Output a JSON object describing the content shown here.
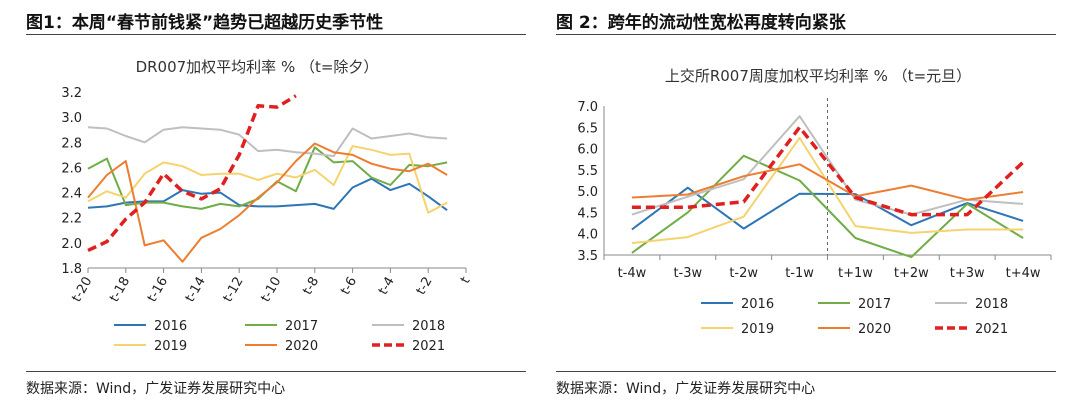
{
  "panels": [
    {
      "figure_title": "图1：本周“春节前钱紧”趋势已超越历史季节性",
      "source_note": "数据来源：Wind，广发证券发展研究中心"
    },
    {
      "figure_title": "图 2：跨年的流动性宽松再度转向紧张",
      "source_note": "数据来源：Wind，广发证券发展研究中心"
    }
  ],
  "chart_data": [
    {
      "type": "line",
      "title": "DR007加权平均利率 %  （t=除夕）",
      "xlabel": "",
      "ylabel": "",
      "categories": [
        "t-20",
        "t-19",
        "t-18",
        "t-17",
        "t-16",
        "t-15",
        "t-14",
        "t-13",
        "t-12",
        "t-11",
        "t-10",
        "t-9",
        "t-8",
        "t-7",
        "t-6",
        "t-5",
        "t-4",
        "t-3",
        "t-2",
        "t-1",
        "t"
      ],
      "tick_labels": [
        "t-20",
        "t-18",
        "t-16",
        "t-14",
        "t-12",
        "t-10",
        "t-8",
        "t-6",
        "t-4",
        "t-2",
        "t"
      ],
      "ylim": [
        1.8,
        3.2
      ],
      "yticks": [
        "1.8",
        "2.0",
        "2.2",
        "2.4",
        "2.6",
        "2.8",
        "3.0",
        "3.2"
      ],
      "series": [
        {
          "name": "2016",
          "color": "#2e75b6",
          "dash": false,
          "values": [
            2.28,
            2.29,
            2.32,
            2.33,
            2.33,
            2.42,
            2.39,
            2.4,
            2.3,
            2.29,
            2.29,
            2.3,
            2.31,
            2.27,
            2.44,
            2.51,
            2.42,
            2.47,
            2.37,
            2.26,
            null
          ]
        },
        {
          "name": "2017",
          "color": "#70ad47",
          "dash": false,
          "values": [
            2.59,
            2.67,
            2.3,
            2.32,
            2.32,
            2.29,
            2.27,
            2.31,
            2.29,
            2.35,
            2.49,
            2.41,
            2.76,
            2.64,
            2.65,
            2.52,
            2.46,
            2.62,
            2.61,
            2.64,
            null
          ]
        },
        {
          "name": "2018",
          "color": "#bfbfbf",
          "dash": false,
          "values": [
            2.92,
            2.91,
            2.85,
            2.8,
            2.9,
            2.92,
            2.91,
            2.9,
            2.86,
            2.73,
            2.74,
            2.72,
            2.71,
            2.69,
            2.91,
            2.83,
            2.85,
            2.87,
            2.84,
            2.83,
            null
          ]
        },
        {
          "name": "2019",
          "color": "#f5d36e",
          "dash": false,
          "values": [
            2.33,
            2.41,
            2.36,
            2.55,
            2.64,
            2.61,
            2.54,
            2.55,
            2.55,
            2.5,
            2.55,
            2.52,
            2.58,
            2.46,
            2.77,
            2.74,
            2.7,
            2.71,
            2.24,
            2.32,
            null
          ]
        },
        {
          "name": "2020",
          "color": "#ed7d31",
          "dash": false,
          "values": [
            2.36,
            2.54,
            2.65,
            1.98,
            2.02,
            1.85,
            2.04,
            2.11,
            2.22,
            2.36,
            2.48,
            2.65,
            2.79,
            2.72,
            2.7,
            2.63,
            2.59,
            2.57,
            2.63,
            2.54,
            null
          ]
        },
        {
          "name": "2021",
          "color": "#e02020",
          "dash": true,
          "values": [
            1.94,
            2.01,
            2.19,
            2.32,
            2.55,
            2.41,
            2.35,
            2.43,
            2.7,
            3.09,
            3.08,
            3.17,
            null,
            null,
            null,
            null,
            null,
            null,
            null,
            null,
            null
          ]
        }
      ]
    },
    {
      "type": "line",
      "title": "上交所R007周度加权平均利率 %  （t=元旦）",
      "xlabel": "",
      "ylabel": "",
      "categories": [
        "t-4w",
        "t-3w",
        "t-2w",
        "t-1w",
        "t+1w",
        "t+2w",
        "t+3w",
        "t+4w"
      ],
      "ylim": [
        3.5,
        7.0
      ],
      "yticks": [
        "3.5",
        "4.0",
        "4.5",
        "5.0",
        "5.5",
        "6.0",
        "6.5",
        "7.0"
      ],
      "divider_after": "t-1w",
      "series": [
        {
          "name": "2016",
          "color": "#2e75b6",
          "dash": false,
          "values": [
            4.1,
            5.08,
            4.12,
            4.94,
            4.93,
            4.2,
            4.72,
            4.3
          ]
        },
        {
          "name": "2017",
          "color": "#70ad47",
          "dash": false,
          "values": [
            3.55,
            4.5,
            5.83,
            5.25,
            3.9,
            3.45,
            4.7,
            3.9
          ]
        },
        {
          "name": "2018",
          "color": "#bfbfbf",
          "dash": false,
          "values": [
            4.45,
            4.87,
            5.28,
            6.76,
            4.8,
            4.45,
            4.8,
            4.7
          ]
        },
        {
          "name": "2019",
          "color": "#f5d36e",
          "dash": false,
          "values": [
            3.78,
            3.92,
            4.4,
            6.25,
            4.18,
            4.02,
            4.1,
            4.1
          ]
        },
        {
          "name": "2020",
          "color": "#ed7d31",
          "dash": false,
          "values": [
            4.85,
            4.92,
            5.35,
            5.63,
            4.88,
            5.13,
            4.8,
            4.98
          ]
        },
        {
          "name": "2021",
          "color": "#e02020",
          "dash": true,
          "values": [
            4.62,
            4.62,
            4.75,
            6.5,
            4.85,
            4.45,
            4.45,
            5.68
          ]
        }
      ]
    }
  ]
}
